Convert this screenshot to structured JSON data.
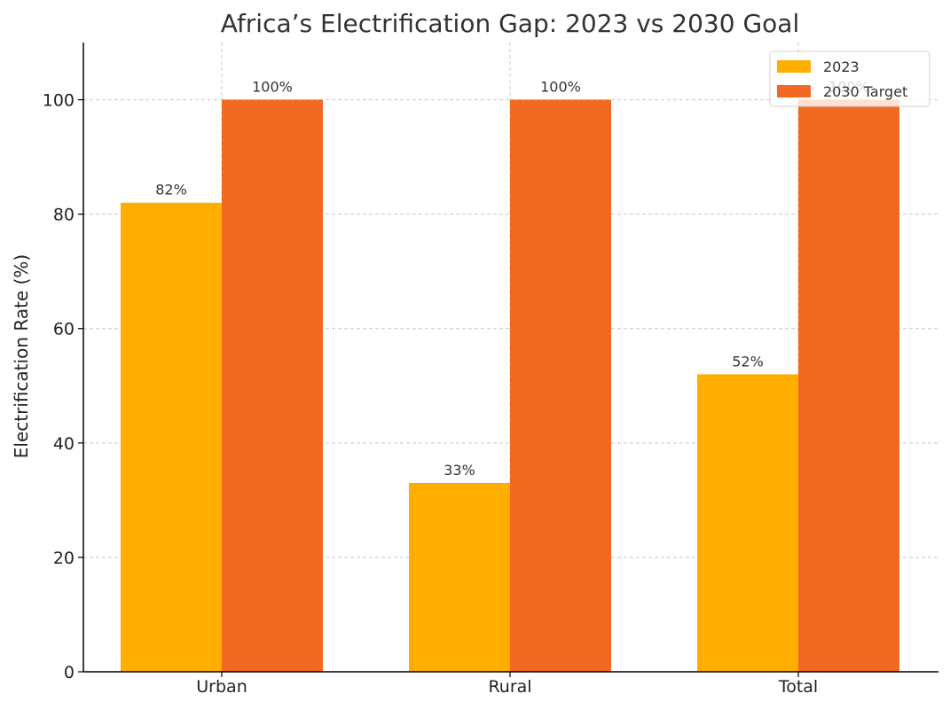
{
  "chart_data": {
    "type": "bar",
    "title": "Africa’s Electrification Gap: 2023 vs 2030 Goal",
    "xlabel": "",
    "ylabel": "Electrification Rate (%)",
    "categories": [
      "Urban",
      "Rural",
      "Total"
    ],
    "series": [
      {
        "name": "2023",
        "values": [
          82,
          33,
          52
        ],
        "labels": [
          "82%",
          "33%",
          "52%"
        ],
        "color": "#FFAE00"
      },
      {
        "name": "2030 Target",
        "values": [
          100,
          100,
          100
        ],
        "labels": [
          "100%",
          "100%",
          "100%"
        ],
        "color": "#F26A21"
      }
    ],
    "ylim": [
      0,
      110
    ],
    "yticks": [
      0,
      20,
      40,
      60,
      80,
      100
    ],
    "grid": true,
    "legend_position": "top-right"
  }
}
